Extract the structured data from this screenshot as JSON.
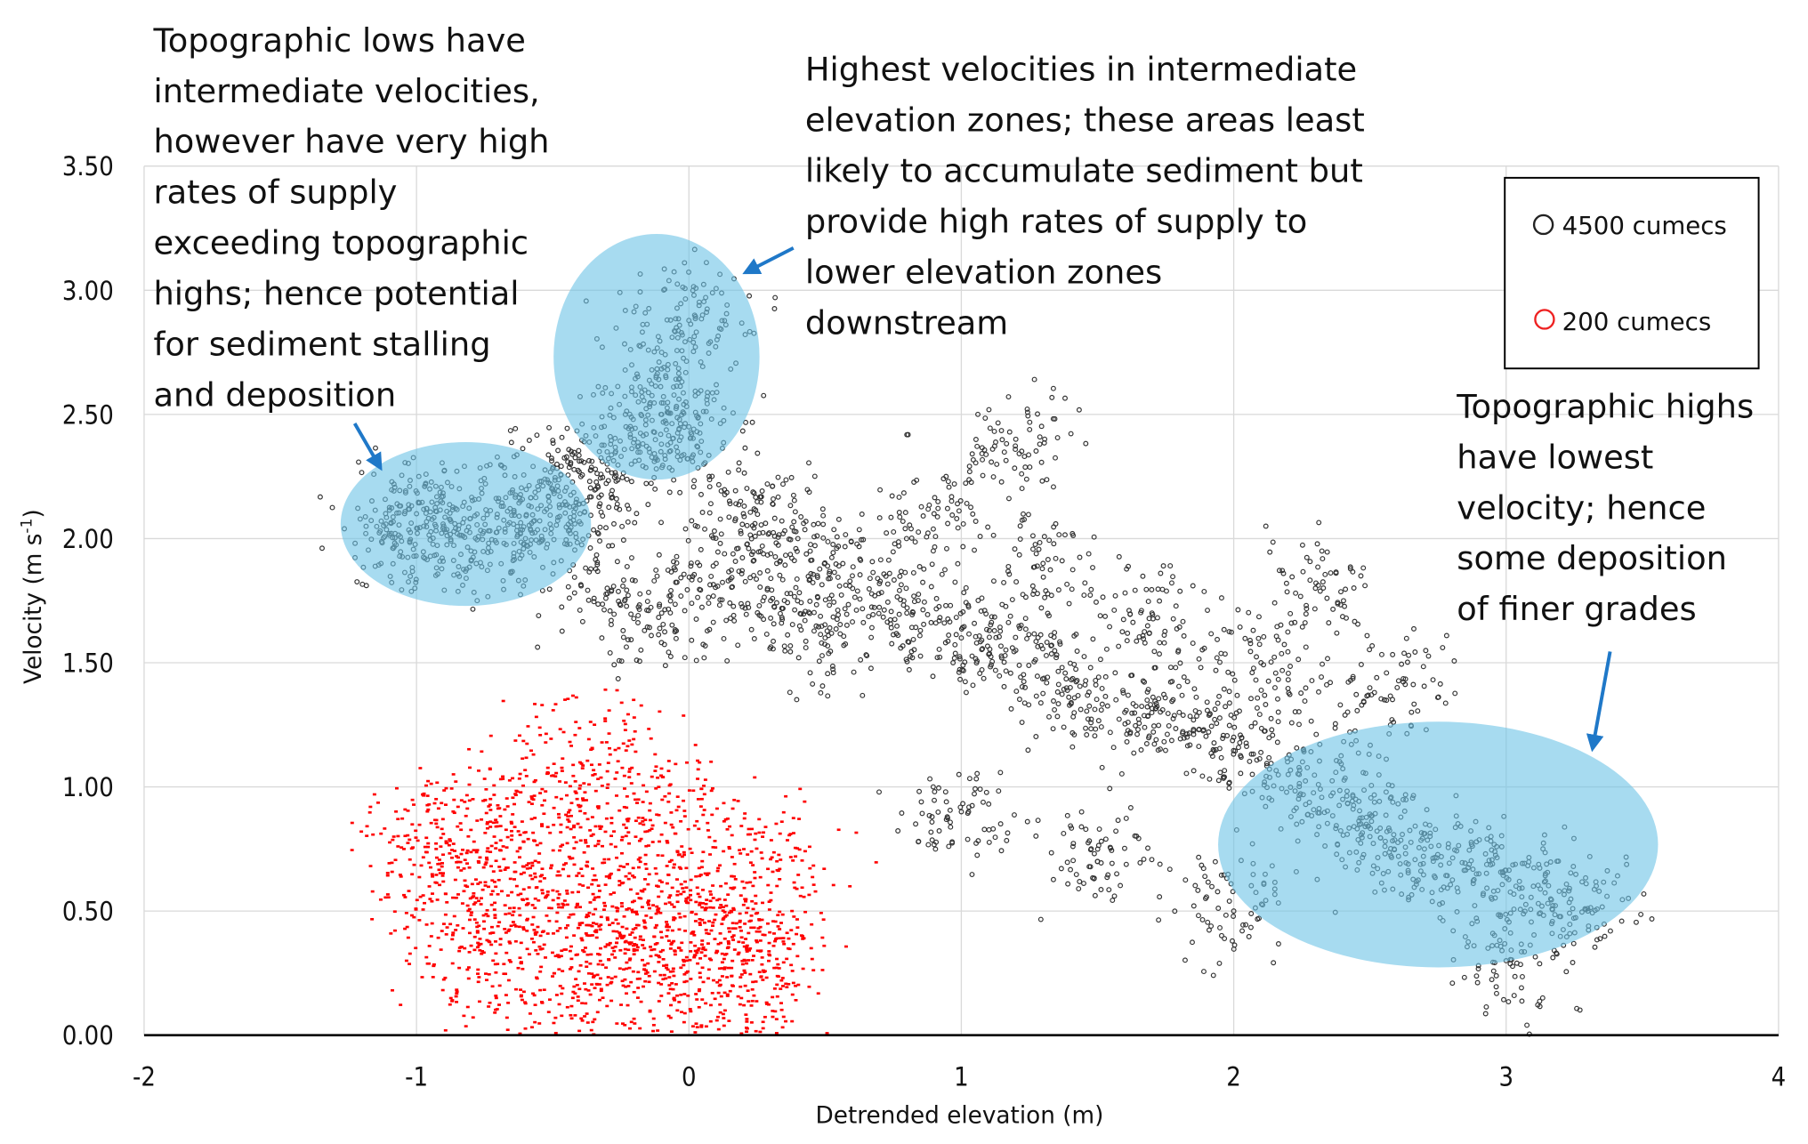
{
  "chart_data": {
    "type": "scatter",
    "xlabel": "Detrended elevation (m)",
    "ylabel": "Velocity (m s",
    "ylabel_superscript": "-1",
    "ylabel_close": ")",
    "xlim": [
      -2,
      4
    ],
    "ylim": [
      0,
      3.5
    ],
    "xticks": [
      "-2",
      "-1",
      "0",
      "1",
      "2",
      "3",
      "4"
    ],
    "yticks": [
      "0.00",
      "0.50",
      "1.00",
      "1.50",
      "2.00",
      "2.50",
      "3.00",
      "3.50"
    ],
    "grid": true,
    "legend_position": "top-right",
    "series": [
      {
        "name": "4500 cumecs",
        "color": "#333333",
        "marker": "open-circle",
        "points": [
          [
            -1.1,
            2.02
          ],
          [
            -1.0,
            2.1
          ],
          [
            -0.9,
            2.05
          ],
          [
            -0.8,
            1.95
          ],
          [
            -0.7,
            2.15
          ],
          [
            -0.6,
            2.0
          ],
          [
            -0.5,
            2.2
          ],
          [
            -0.4,
            2.1
          ],
          [
            -0.3,
            2.3
          ],
          [
            -0.2,
            2.4
          ],
          [
            -0.1,
            2.5
          ],
          [
            0,
            2.45
          ],
          [
            -0.1,
            2.75
          ],
          [
            0.05,
            2.9
          ],
          [
            -0.3,
            1.8
          ],
          [
            -0.1,
            1.7
          ],
          [
            0.1,
            1.9
          ],
          [
            0.2,
            2.1
          ],
          [
            0.3,
            1.75
          ],
          [
            0.4,
            2.0
          ],
          [
            0.5,
            1.6
          ],
          [
            0.6,
            1.85
          ],
          [
            0.8,
            1.7
          ],
          [
            1.0,
            1.6
          ],
          [
            1.2,
            1.55
          ],
          [
            1.4,
            1.4
          ],
          [
            1.6,
            1.3
          ],
          [
            1.8,
            1.3
          ],
          [
            2.0,
            1.2
          ],
          [
            2.2,
            1.05
          ],
          [
            2.4,
            0.95
          ],
          [
            2.5,
            0.8
          ],
          [
            2.7,
            0.75
          ],
          [
            2.9,
            0.65
          ],
          [
            3.1,
            0.6
          ],
          [
            3.3,
            0.5
          ],
          [
            0.9,
            2.1
          ],
          [
            1.3,
            1.9
          ],
          [
            1.7,
            1.7
          ],
          [
            2.1,
            1.5
          ],
          [
            2.6,
            1.4
          ],
          [
            1.0,
            0.9
          ],
          [
            1.5,
            0.7
          ],
          [
            2.0,
            0.5
          ],
          [
            3.0,
            0.3
          ],
          [
            1.2,
            2.4
          ],
          [
            2.3,
            1.8
          ]
        ]
      },
      {
        "name": "200 cumecs",
        "color": "#ff0000",
        "marker": "open-circle",
        "points": [
          [
            -1.0,
            0.8
          ],
          [
            -0.9,
            0.6
          ],
          [
            -0.8,
            0.9
          ],
          [
            -0.7,
            0.5
          ],
          [
            -0.6,
            0.7
          ],
          [
            -0.5,
            0.4
          ],
          [
            -0.4,
            0.6
          ],
          [
            -0.3,
            0.3
          ],
          [
            -0.2,
            0.5
          ],
          [
            -0.1,
            0.4
          ],
          [
            0,
            0.6
          ],
          [
            0.1,
            0.35
          ],
          [
            0.2,
            0.5
          ],
          [
            0.3,
            0.3
          ],
          [
            -0.5,
            1.0
          ],
          [
            -0.3,
            0.9
          ],
          [
            -0.1,
            0.15
          ],
          [
            -0.5,
            0.1
          ],
          [
            0.2,
            0.1
          ],
          [
            -0.8,
            0.3
          ],
          [
            0,
            0.9
          ],
          [
            -0.3,
            1.15
          ],
          [
            0.35,
            0.7
          ]
        ]
      }
    ],
    "annotations": [
      {
        "lines": [
          "Topographic lows have",
          "intermediate velocities,",
          "however have very high",
          "rates of supply",
          "exceeding topographic",
          "highs; hence potential",
          "for sediment stalling",
          "and deposition"
        ]
      },
      {
        "lines": [
          "Highest velocities in intermediate",
          "elevation zones; these areas least",
          "likely to accumulate sediment but",
          "provide high rates of supply to",
          "lower elevation zones",
          "downstream"
        ]
      },
      {
        "lines": [
          "Topographic highs",
          "have lowest",
          "velocity; hence",
          "some deposition",
          "of finer grades"
        ]
      }
    ],
    "highlight_color": "#87cfe8",
    "arrow_color": "#1f78c8"
  }
}
